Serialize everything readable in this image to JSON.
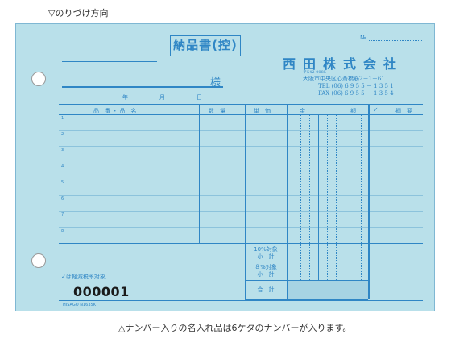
{
  "top_note": "▽のりづけ方向",
  "bottom_note": "△ナンバー入りの名入れ品は6ケタのナンバーが入ります。",
  "slip": {
    "title": "納品書(控)",
    "no_label": "№.",
    "company": "西田株式会社",
    "postal": "〒542-0085",
    "address": "大阪市中央区心斎橋筋2－1－61",
    "tel": "TEL (06) 6 9 5 5 － 1 3 5 1",
    "fax": "FAX (06) 6 9 5 5 － 1 3 5 4",
    "honorific": "様",
    "date_labels": [
      "年",
      "月",
      "日"
    ],
    "headers": {
      "item": "品　番 ・ 品　名",
      "qty": "数　量",
      "price": "単　価",
      "amount_left": "金",
      "amount_right": "額",
      "check": "✓",
      "note": "摘　要"
    },
    "row_numbers": [
      "1",
      "2",
      "3",
      "4",
      "5",
      "6",
      "7",
      "8"
    ],
    "subtotal_10": [
      "10%対象",
      "小　計"
    ],
    "subtotal_8": [
      "８%対象",
      "小　計"
    ],
    "total": "合　計",
    "reduced_tax_note": "✓は軽減税率対象",
    "serial_number": "000001",
    "maker": "HISAGO N1635K"
  }
}
